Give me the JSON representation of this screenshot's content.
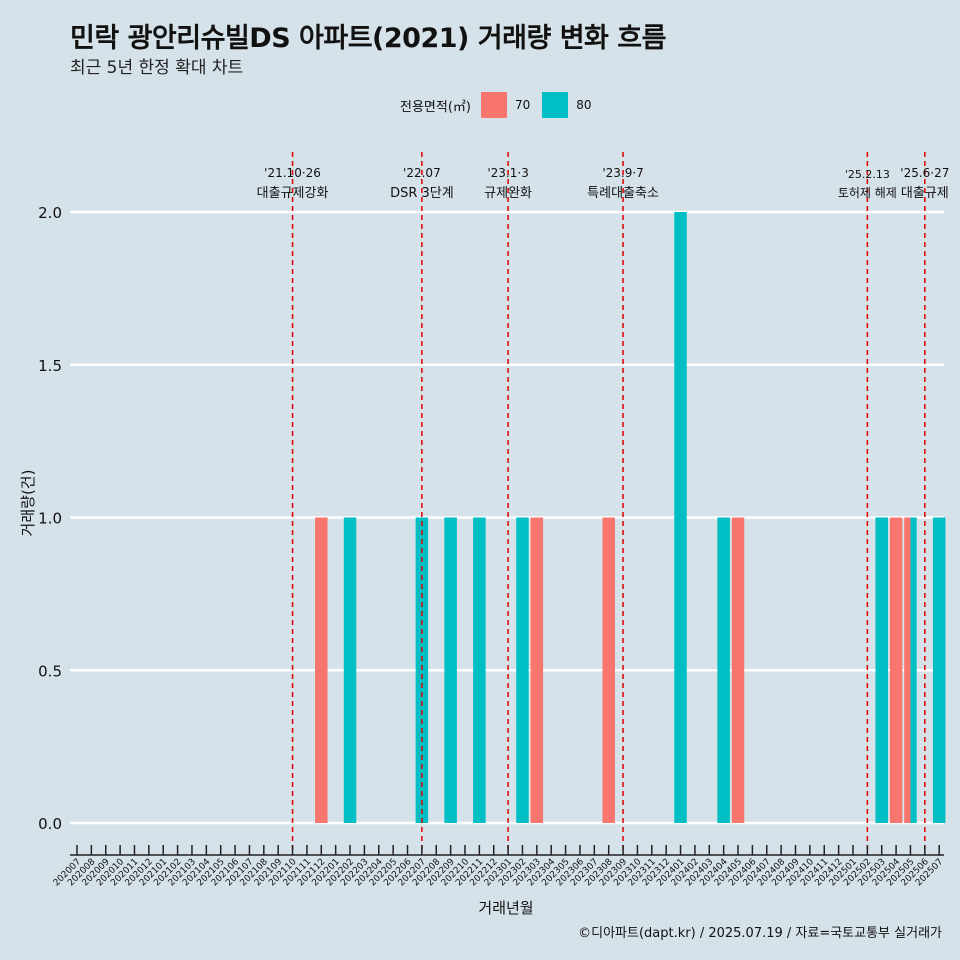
{
  "title": "민락 광안리슈빌DS 아파트(2021) 거래량 변화 흐름",
  "subtitle": "최근 5년 한정 확대 차트",
  "caption": "©디아파트(dapt.kr) / 2025.07.19 / 자료=국토교통부 실거래가",
  "legend": {
    "title": "전용면적(㎡)",
    "items": [
      {
        "label": "70",
        "color": "#f8766d"
      },
      {
        "label": "80",
        "color": "#00bfc4"
      }
    ]
  },
  "chart_data": {
    "type": "bar",
    "xlabel": "거래년월",
    "ylabel": "거래량(건)",
    "ylim": [
      0,
      2
    ],
    "yticks": [
      "0.0",
      "0.5",
      "1.0",
      "1.5",
      "2.0"
    ],
    "grid": true,
    "legend_position": "top",
    "categories": [
      "202007",
      "202008",
      "202009",
      "202010",
      "202011",
      "202012",
      "202101",
      "202102",
      "202103",
      "202104",
      "202105",
      "202106",
      "202107",
      "202108",
      "202109",
      "202110",
      "202111",
      "202112",
      "202201",
      "202202",
      "202203",
      "202204",
      "202205",
      "202206",
      "202207",
      "202208",
      "202209",
      "202210",
      "202211",
      "202212",
      "202301",
      "202302",
      "202303",
      "202304",
      "202305",
      "202306",
      "202307",
      "202308",
      "202309",
      "202310",
      "202311",
      "202312",
      "202401",
      "202402",
      "202403",
      "202404",
      "202405",
      "202406",
      "202407",
      "202408",
      "202409",
      "202410",
      "202411",
      "202412",
      "202501",
      "202502",
      "202503",
      "202504",
      "202505",
      "202506",
      "202507"
    ],
    "series": [
      {
        "name": "70",
        "color": "#f8766d",
        "points": [
          {
            "x": "202112",
            "y": 1
          },
          {
            "x": "202303",
            "y": 1
          },
          {
            "x": "202308",
            "y": 1
          },
          {
            "x": "202405",
            "y": 1
          },
          {
            "x": "202504",
            "y": 1
          },
          {
            "x": "202505",
            "y": 1
          }
        ]
      },
      {
        "name": "80",
        "color": "#00bfc4",
        "points": [
          {
            "x": "202202",
            "y": 1
          },
          {
            "x": "202207",
            "y": 1
          },
          {
            "x": "202209",
            "y": 1
          },
          {
            "x": "202211",
            "y": 1
          },
          {
            "x": "202302",
            "y": 1
          },
          {
            "x": "202401",
            "y": 2
          },
          {
            "x": "202404",
            "y": 1
          },
          {
            "x": "202503",
            "y": 1
          },
          {
            "x": "202505",
            "y": 1
          },
          {
            "x": "202507",
            "y": 1
          }
        ]
      }
    ],
    "annotations": [
      {
        "month": "202110",
        "date": "'21.10·26",
        "text": "대출규제강화"
      },
      {
        "month": "202207",
        "date": "'22.07",
        "text": "DSR 3단계"
      },
      {
        "month": "202301",
        "date": "'23.1·3",
        "text": "규제완화"
      },
      {
        "month": "202309",
        "date": "'23.9·7",
        "text": "특례대출축소"
      },
      {
        "month": "202502",
        "date": "'25.2.13",
        "text": "토허제 해제"
      },
      {
        "month": "202506",
        "date": "'25.6·27",
        "text": "대출규제"
      }
    ],
    "annotation_color": "#e00000"
  }
}
